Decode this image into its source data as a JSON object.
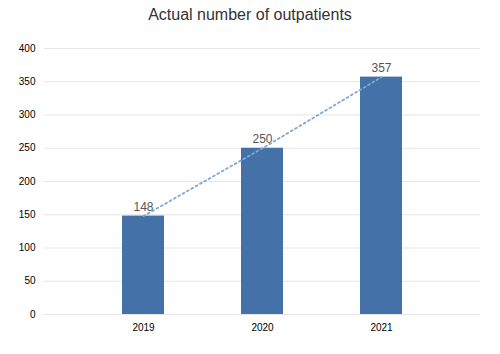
{
  "chart_data": {
    "type": "bar",
    "title": "Actual number of outpatients",
    "categories": [
      "2019",
      "2020",
      "2021"
    ],
    "series": [
      {
        "type": "bar",
        "color": "#4472a8",
        "values": [
          148,
          250,
          357
        ]
      },
      {
        "type": "line",
        "color": "#7fa8d4",
        "line_style": "dotted",
        "values": [
          148,
          250,
          357
        ]
      }
    ],
    "data_labels": true,
    "ylim": [
      0,
      400
    ],
    "yticks": [
      0,
      50,
      100,
      150,
      200,
      250,
      300,
      350,
      400
    ],
    "grid": true
  }
}
